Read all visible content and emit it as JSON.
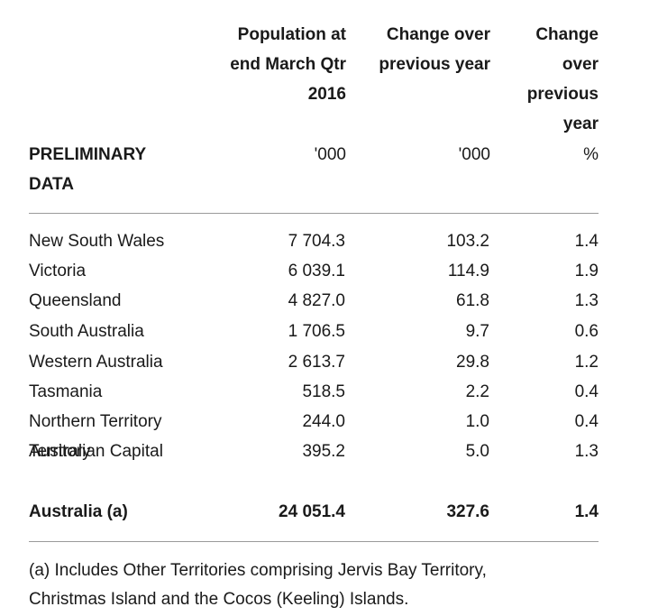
{
  "table": {
    "header": {
      "first_col_lines": [
        "PRELIMINARY",
        "DATA"
      ],
      "col1_lines": [
        "Population at",
        "end March Qtr",
        "2016"
      ],
      "col2_lines": [
        "Change over",
        "previous year"
      ],
      "col3_lines": [
        "Change",
        "over",
        "previous",
        "year"
      ],
      "col1_unit": "'000",
      "col2_unit": "'000",
      "col3_unit": "%"
    },
    "rows": [
      {
        "name": "New South Wales",
        "population": "7 704.3",
        "change": "103.2",
        "pct": "1.4"
      },
      {
        "name": "Victoria",
        "population": "6 039.1",
        "change": "114.9",
        "pct": "1.9"
      },
      {
        "name": "Queensland",
        "population": "4 827.0",
        "change": "61.8",
        "pct": "1.3"
      },
      {
        "name": "South Australia",
        "population": "1 706.5",
        "change": "9.7",
        "pct": "0.6"
      },
      {
        "name": "Western Australia",
        "population": "2 613.7",
        "change": "29.8",
        "pct": "1.2"
      },
      {
        "name": "Tasmania",
        "population": "518.5",
        "change": "2.2",
        "pct": "0.4"
      },
      {
        "name": "Northern Territory",
        "population": "244.0",
        "change": "1.0",
        "pct": "0.4"
      }
    ],
    "act": {
      "name_lines": [
        "Australian Capital",
        "Territory"
      ],
      "population": "395.2",
      "change": "5.0",
      "pct": "1.3"
    },
    "total": {
      "name": "Australia (a)",
      "population": "24 051.4",
      "change": "327.6",
      "pct": "1.4"
    }
  },
  "footnote": {
    "lines": [
      "(a) Includes Other Territories comprising Jervis Bay Territory,",
      "Christmas Island and the Cocos (Keeling) Islands."
    ]
  }
}
